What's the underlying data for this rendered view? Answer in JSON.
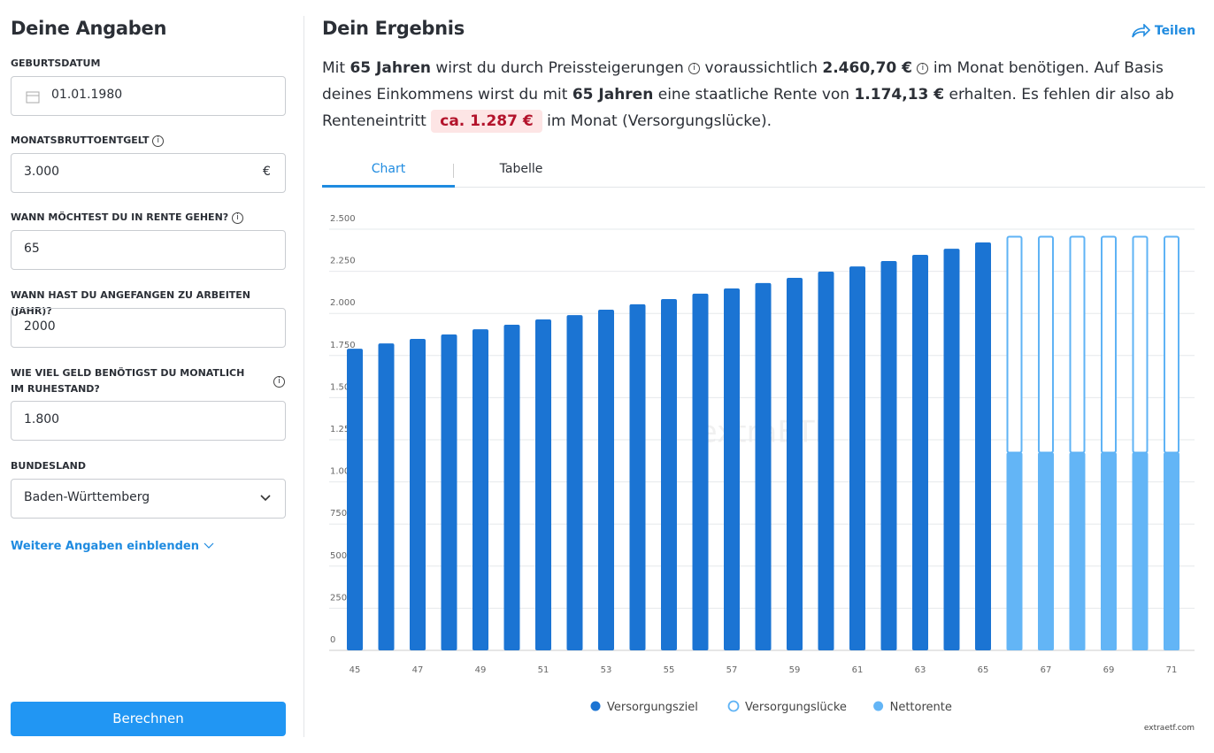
{
  "form": {
    "title": "Deine Angaben",
    "fields": [
      {
        "label": "GEBURTSDATUM",
        "value": "01.01.1980"
      },
      {
        "label": "MONATSBRUTTOENTGELT",
        "value": "3.000",
        "unit": "€"
      },
      {
        "label": "WANN MÖCHTEST DU IN RENTE GEHEN?",
        "value": "65"
      },
      {
        "label": "WANN HAST DU ANGEFANGEN ZU ARBEITEN (JAHR)?",
        "value": "2000"
      },
      {
        "label": "WIE VIEL GELD BENÖTIGST DU MONATLICH IM RUHESTAND?",
        "value": "1.800"
      },
      {
        "label": "BUNDESLAND",
        "value": "Baden-Württemberg"
      }
    ],
    "more": "Weitere Angaben einblenden",
    "button": "Berechnen"
  },
  "result": {
    "title": "Dein Ergebnis",
    "share": "Teilen",
    "text": [
      "Mit ",
      "65 Jahren",
      " wirst du durch Preissteigerungen ",
      " voraussichtlich ",
      "2.460,70 €",
      " im Monat benötigen. Auf Basis deines Einkommens wirst du mit ",
      "65 Jahren",
      " eine staatliche Rente von ",
      "1.174,13 €",
      " erhalten. Es fehlen dir also ab Renteneintritt ",
      "ca. 1.287 €",
      " im Monat (Versorgungslücke)."
    ],
    "tabs": [
      "Chart",
      "Tabelle"
    ],
    "watermark": "extraETF",
    "footer": "extraetf.com"
  },
  "chart_data": {
    "type": "bar",
    "stacked": true,
    "categories": [
      "45",
      null,
      "47",
      null,
      "49",
      null,
      "51",
      null,
      "53",
      null,
      "55",
      null,
      "57",
      null,
      "59",
      null,
      "61",
      null,
      "63",
      null,
      "65",
      null,
      "67",
      null,
      "69",
      null,
      "71"
    ],
    "series": [
      {
        "name": "Versorgungsziel",
        "color": "#1b74d3",
        "values": [
          1790,
          1822,
          1849,
          1875,
          1906,
          1933,
          1964,
          1990,
          2022,
          2054,
          2085,
          2117,
          2148,
          2180,
          2211,
          2248,
          2279,
          2311,
          2348,
          2384,
          2421,
          null,
          null,
          null,
          null,
          null,
          null
        ]
      },
      {
        "name": "Versorgungslücke",
        "color": "#5fb3f5",
        "outline": true,
        "values": [
          null,
          null,
          null,
          null,
          null,
          null,
          null,
          null,
          null,
          null,
          null,
          null,
          null,
          null,
          null,
          null,
          null,
          null,
          null,
          null,
          null,
          1286.57,
          1286.57,
          1286.57,
          1286.57,
          1286.57,
          1286.57
        ]
      },
      {
        "name": "Nettorente",
        "color": "#63b5f6",
        "values": [
          null,
          null,
          null,
          null,
          null,
          null,
          null,
          null,
          null,
          null,
          null,
          null,
          null,
          null,
          null,
          null,
          null,
          null,
          null,
          null,
          null,
          1174.13,
          1174.13,
          1174.13,
          1174.13,
          1174.13,
          1174.13
        ]
      }
    ],
    "ylim": [
      0,
      2500
    ],
    "yticks": [
      0,
      {
        "value": 250,
        "label": "250"
      },
      {
        "value": 500,
        "label": "500"
      },
      {
        "value": 750,
        "label": "750"
      },
      {
        "value": 1000,
        "label": "1.000"
      },
      {
        "value": 1250,
        "label": "1.250"
      },
      {
        "value": 1500,
        "label": "1.500"
      },
      {
        "value": 1750,
        "label": "1.750"
      },
      {
        "value": 2000,
        "label": "2.000"
      },
      {
        "value": 2250,
        "label": "2.250"
      },
      {
        "value": 2500,
        "label": "2.500"
      }
    ],
    "grid": true
  }
}
